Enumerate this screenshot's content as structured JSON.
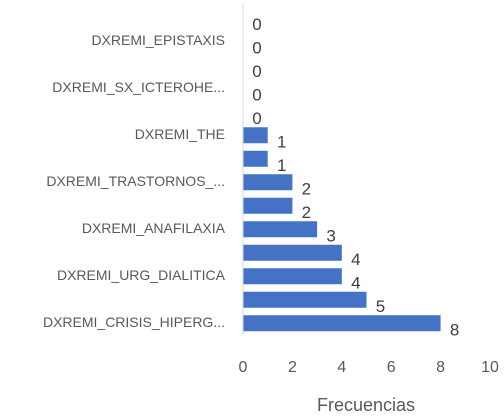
{
  "chart_data": {
    "type": "bar",
    "orientation": "horizontal",
    "categories": [
      null,
      "DXREMI_EPISTAXIS",
      null,
      "DXREMI_SX_ICTEROHE...",
      null,
      "DXREMI_THE",
      null,
      "DXREMI_TRASTORNOS_...",
      null,
      "DXREMI_ANAFILAXIA",
      null,
      "DXREMI_URG_DIALITICA",
      null,
      "DXREMI_CRISIS_HIPERG..."
    ],
    "values": [
      0,
      0,
      0,
      0,
      0,
      1,
      1,
      2,
      2,
      3,
      4,
      4,
      5,
      8
    ],
    "color": "#4472c4",
    "xlabel": "Frecuencias",
    "xlim": [
      0,
      10
    ],
    "xticks": [
      0,
      2,
      4,
      6,
      8,
      10
    ],
    "data_labels": true,
    "grid": false
  }
}
